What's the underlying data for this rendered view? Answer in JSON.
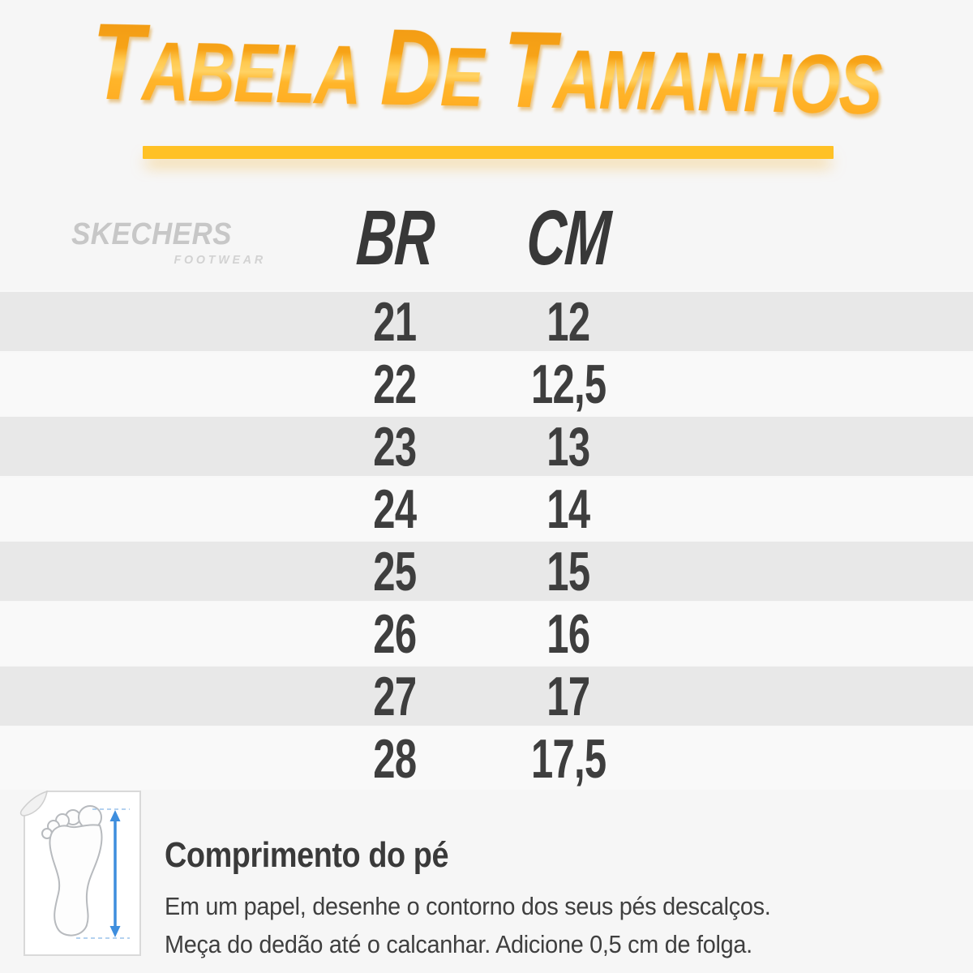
{
  "colors": {
    "background": "#f6f6f6",
    "title_grad_top": "#ef9712",
    "title_grad_mid": "#ffc94f",
    "title_grad_bottom": "#ffa61c",
    "divider_yellow": "#ffc125",
    "row_dark": "#e8e8e8",
    "row_light": "#f9f9f9",
    "text_dark": "#3e3e3e",
    "logo_gray": "#c7c7c7",
    "arrow_blue": "#3e8ede",
    "paper_border": "#d9d9d9",
    "foot_outline": "#b7babe"
  },
  "title": {
    "full": "Tabela de Tamanhos",
    "words": [
      {
        "initial": "T",
        "rest": "ABELA"
      },
      {
        "initial": "D",
        "rest": "E"
      },
      {
        "initial": "T",
        "rest": "AMANHOS"
      }
    ]
  },
  "brand": {
    "name": "SKECHERS",
    "sub": "FOOTWEAR"
  },
  "chart_data": {
    "type": "table",
    "title": "Tabela de Tamanhos",
    "columns": [
      "BR",
      "CM"
    ],
    "rows": [
      [
        "21",
        "12"
      ],
      [
        "22",
        "12,5"
      ],
      [
        "23",
        "13"
      ],
      [
        "24",
        "14"
      ],
      [
        "25",
        "15"
      ],
      [
        "26",
        "16"
      ],
      [
        "27",
        "17"
      ],
      [
        "28",
        "17,5"
      ]
    ]
  },
  "footer": {
    "heading": "Comprimento do pé",
    "instructions": [
      "Em um papel, desenhe o contorno dos seus pés descalços.",
      "Meça do dedão até o calcanhar. Adicione 0,5 cm de folga."
    ]
  }
}
